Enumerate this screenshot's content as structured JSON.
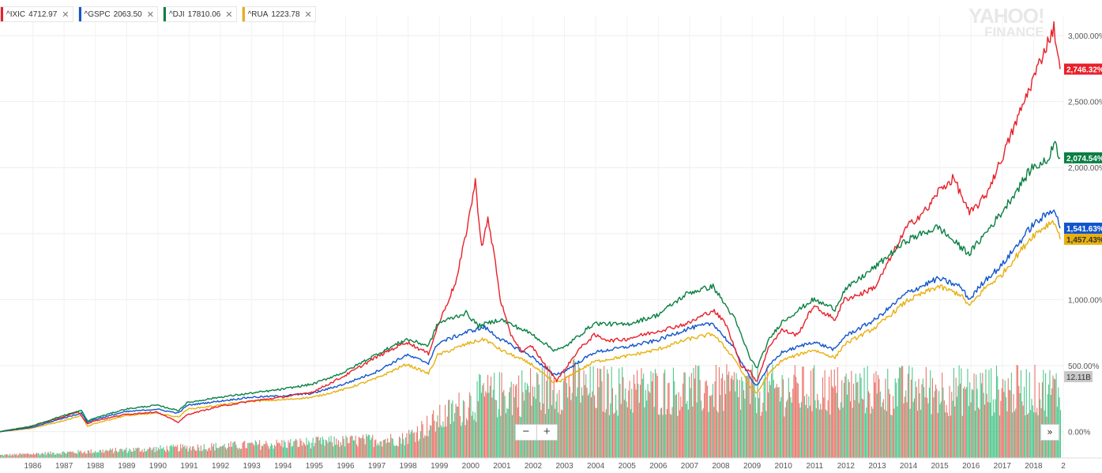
{
  "legend": [
    {
      "symbol": "^IXIC",
      "value": "4712.97",
      "color": "#e8202a"
    },
    {
      "symbol": "^GSPC",
      "value": "2063.50",
      "color": "#1155cc"
    },
    {
      "symbol": "^DJI",
      "value": "17810.06",
      "color": "#0a8043"
    },
    {
      "symbol": "^RUA",
      "value": "1223.78",
      "color": "#e8b00f"
    }
  ],
  "legend_close_glyph": "✕",
  "brand": {
    "line1": "YAHOO!",
    "line2": "FINANCE"
  },
  "zoom": {
    "minus": "−",
    "plus": "+"
  },
  "expand_glyph": "»",
  "chart_data": {
    "type": "line",
    "title": "",
    "xlabel": "",
    "ylabel": "",
    "x_ticks": [
      "1986",
      "1987",
      "1988",
      "1989",
      "1990",
      "1991",
      "1992",
      "1993",
      "1994",
      "1995",
      "1996",
      "1997",
      "1998",
      "1999",
      "2000",
      "2001",
      "2002",
      "2003",
      "2004",
      "2005",
      "2006",
      "2007",
      "2008",
      "2009",
      "2010",
      "2011",
      "2012",
      "2013",
      "2014",
      "2015",
      "2016",
      "2017",
      "2018",
      "2"
    ],
    "x_range": [
      1985.0,
      2019.0
    ],
    "y_ticks": [
      "0.00%",
      "500.00%",
      "1,000.00%",
      "1,500.00%",
      "2,000.00%",
      "2,500.00%",
      "3,000.00%"
    ],
    "y_range": [
      -200,
      3150
    ],
    "grid": true,
    "y_axis_side": "right",
    "series": [
      {
        "symbol": "^IXIC",
        "color": "#e8202a",
        "last_label": "2,746.32%",
        "points": [
          [
            1985.0,
            0
          ],
          [
            1986.0,
            40
          ],
          [
            1987.0,
            110
          ],
          [
            1987.5,
            150
          ],
          [
            1987.8,
            60
          ],
          [
            1988.0,
            80
          ],
          [
            1989.0,
            130
          ],
          [
            1990.0,
            150
          ],
          [
            1990.7,
            70
          ],
          [
            1991.0,
            130
          ],
          [
            1992.0,
            190
          ],
          [
            1993.0,
            230
          ],
          [
            1994.0,
            260
          ],
          [
            1995.0,
            300
          ],
          [
            1996.0,
            420
          ],
          [
            1997.0,
            560
          ],
          [
            1998.0,
            680
          ],
          [
            1998.7,
            590
          ],
          [
            1999.0,
            800
          ],
          [
            1999.6,
            1150
          ],
          [
            1999.9,
            1500
          ],
          [
            2000.2,
            1890
          ],
          [
            2000.4,
            1400
          ],
          [
            2000.6,
            1600
          ],
          [
            2000.8,
            1350
          ],
          [
            2001.0,
            1000
          ],
          [
            2001.3,
            750
          ],
          [
            2001.7,
            600
          ],
          [
            2002.0,
            650
          ],
          [
            2002.5,
            480
          ],
          [
            2002.8,
            390
          ],
          [
            2003.0,
            450
          ],
          [
            2003.5,
            620
          ],
          [
            2004.0,
            730
          ],
          [
            2004.5,
            690
          ],
          [
            2005.0,
            700
          ],
          [
            2006.0,
            760
          ],
          [
            2007.0,
            820
          ],
          [
            2007.8,
            920
          ],
          [
            2008.2,
            820
          ],
          [
            2008.7,
            500
          ],
          [
            2009.0,
            450
          ],
          [
            2009.2,
            380
          ],
          [
            2009.6,
            650
          ],
          [
            2010.0,
            770
          ],
          [
            2010.5,
            730
          ],
          [
            2011.0,
            950
          ],
          [
            2011.7,
            850
          ],
          [
            2012.0,
            1000
          ],
          [
            2012.6,
            1050
          ],
          [
            2013.0,
            1100
          ],
          [
            2014.0,
            1550
          ],
          [
            2014.7,
            1700
          ],
          [
            2015.0,
            1820
          ],
          [
            2015.5,
            1920
          ],
          [
            2016.0,
            1650
          ],
          [
            2016.5,
            1780
          ],
          [
            2017.0,
            2050
          ],
          [
            2017.5,
            2350
          ],
          [
            2018.0,
            2650
          ],
          [
            2018.5,
            2950
          ],
          [
            2018.7,
            3060
          ],
          [
            2018.9,
            2746
          ]
        ]
      },
      {
        "symbol": "^GSPC",
        "color": "#1155cc",
        "last_label": "1,541.63%",
        "points": [
          [
            1985.0,
            0
          ],
          [
            1986.0,
            30
          ],
          [
            1987.0,
            100
          ],
          [
            1987.6,
            140
          ],
          [
            1987.8,
            70
          ],
          [
            1988.0,
            90
          ],
          [
            1989.0,
            150
          ],
          [
            1990.0,
            170
          ],
          [
            1990.7,
            140
          ],
          [
            1991.0,
            200
          ],
          [
            1992.0,
            230
          ],
          [
            1993.0,
            260
          ],
          [
            1994.0,
            270
          ],
          [
            1995.0,
            290
          ],
          [
            1996.0,
            360
          ],
          [
            1997.0,
            450
          ],
          [
            1998.0,
            580
          ],
          [
            1998.7,
            520
          ],
          [
            1999.0,
            670
          ],
          [
            2000.0,
            760
          ],
          [
            2000.5,
            790
          ],
          [
            2001.0,
            700
          ],
          [
            2002.0,
            570
          ],
          [
            2002.7,
            430
          ],
          [
            2003.0,
            450
          ],
          [
            2004.0,
            600
          ],
          [
            2005.0,
            640
          ],
          [
            2006.0,
            690
          ],
          [
            2007.0,
            780
          ],
          [
            2007.8,
            820
          ],
          [
            2008.5,
            620
          ],
          [
            2009.0,
            400
          ],
          [
            2009.2,
            350
          ],
          [
            2009.6,
            500
          ],
          [
            2010.0,
            600
          ],
          [
            2011.0,
            680
          ],
          [
            2011.7,
            620
          ],
          [
            2012.0,
            720
          ],
          [
            2013.0,
            850
          ],
          [
            2014.0,
            1050
          ],
          [
            2015.0,
            1160
          ],
          [
            2015.7,
            1100
          ],
          [
            2016.0,
            1000
          ],
          [
            2016.5,
            1150
          ],
          [
            2017.0,
            1250
          ],
          [
            2018.0,
            1560
          ],
          [
            2018.5,
            1650
          ],
          [
            2018.7,
            1700
          ],
          [
            2018.9,
            1541
          ]
        ]
      },
      {
        "symbol": "^DJI",
        "color": "#0a8043",
        "last_label": "2,074.54%",
        "points": [
          [
            1985.0,
            0
          ],
          [
            1986.0,
            40
          ],
          [
            1987.0,
            120
          ],
          [
            1987.6,
            160
          ],
          [
            1987.8,
            80
          ],
          [
            1988.0,
            100
          ],
          [
            1989.0,
            170
          ],
          [
            1990.0,
            200
          ],
          [
            1990.7,
            160
          ],
          [
            1991.0,
            220
          ],
          [
            1992.0,
            260
          ],
          [
            1993.0,
            290
          ],
          [
            1994.0,
            320
          ],
          [
            1995.0,
            360
          ],
          [
            1996.0,
            450
          ],
          [
            1997.0,
            580
          ],
          [
            1998.0,
            700
          ],
          [
            1998.7,
            650
          ],
          [
            1999.0,
            820
          ],
          [
            1999.9,
            900
          ],
          [
            2000.3,
            800
          ],
          [
            2001.0,
            850
          ],
          [
            2002.0,
            740
          ],
          [
            2002.7,
            620
          ],
          [
            2003.0,
            630
          ],
          [
            2004.0,
            820
          ],
          [
            2005.0,
            810
          ],
          [
            2006.0,
            880
          ],
          [
            2007.0,
            1050
          ],
          [
            2007.8,
            1100
          ],
          [
            2008.5,
            850
          ],
          [
            2009.0,
            550
          ],
          [
            2009.2,
            480
          ],
          [
            2009.6,
            700
          ],
          [
            2010.0,
            830
          ],
          [
            2011.0,
            1000
          ],
          [
            2011.7,
            930
          ],
          [
            2012.0,
            1070
          ],
          [
            2013.0,
            1250
          ],
          [
            2014.0,
            1450
          ],
          [
            2015.0,
            1550
          ],
          [
            2015.7,
            1400
          ],
          [
            2016.0,
            1350
          ],
          [
            2016.5,
            1500
          ],
          [
            2017.0,
            1650
          ],
          [
            2018.0,
            2000
          ],
          [
            2018.5,
            2050
          ],
          [
            2018.7,
            2200
          ],
          [
            2018.9,
            2074
          ]
        ]
      },
      {
        "symbol": "^RUA",
        "color": "#e8b00f",
        "last_label": "1,457.43%",
        "points": [
          [
            1985.0,
            0
          ],
          [
            1986.0,
            25
          ],
          [
            1987.0,
            80
          ],
          [
            1987.6,
            120
          ],
          [
            1987.8,
            40
          ],
          [
            1988.0,
            60
          ],
          [
            1989.0,
            120
          ],
          [
            1990.0,
            140
          ],
          [
            1990.7,
            110
          ],
          [
            1991.0,
            170
          ],
          [
            1992.0,
            200
          ],
          [
            1993.0,
            230
          ],
          [
            1994.0,
            240
          ],
          [
            1995.0,
            260
          ],
          [
            1996.0,
            320
          ],
          [
            1997.0,
            400
          ],
          [
            1998.0,
            510
          ],
          [
            1998.7,
            440
          ],
          [
            1999.0,
            580
          ],
          [
            2000.0,
            670
          ],
          [
            2000.5,
            700
          ],
          [
            2001.0,
            620
          ],
          [
            2002.0,
            510
          ],
          [
            2002.7,
            370
          ],
          [
            2003.0,
            390
          ],
          [
            2004.0,
            530
          ],
          [
            2005.0,
            570
          ],
          [
            2006.0,
            620
          ],
          [
            2007.0,
            700
          ],
          [
            2007.8,
            740
          ],
          [
            2008.5,
            550
          ],
          [
            2009.0,
            330
          ],
          [
            2009.2,
            290
          ],
          [
            2009.6,
            440
          ],
          [
            2010.0,
            540
          ],
          [
            2011.0,
            620
          ],
          [
            2011.7,
            560
          ],
          [
            2012.0,
            660
          ],
          [
            2013.0,
            790
          ],
          [
            2014.0,
            990
          ],
          [
            2015.0,
            1100
          ],
          [
            2015.7,
            1040
          ],
          [
            2016.0,
            950
          ],
          [
            2016.5,
            1090
          ],
          [
            2017.0,
            1180
          ],
          [
            2018.0,
            1480
          ],
          [
            2018.5,
            1570
          ],
          [
            2018.7,
            1600
          ],
          [
            2018.9,
            1457
          ]
        ]
      }
    ],
    "volume": {
      "last_label": "12.11B",
      "start": 1985.0,
      "end": 2019.0,
      "up_color": "#3cc282",
      "down_color": "#e8675c"
    }
  }
}
